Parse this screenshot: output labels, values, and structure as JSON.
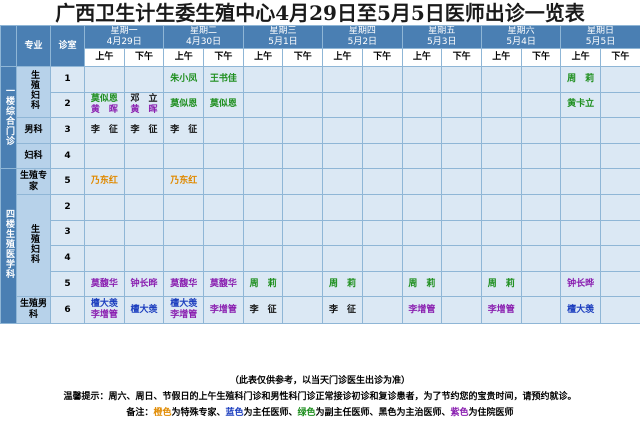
{
  "title": "广西卫生计生委生殖中心4月29日至5月5日医师出诊一览表",
  "header": {
    "specialty": "专业",
    "room": "诊室",
    "am": "上午",
    "pm": "下午",
    "days": [
      {
        "weekday": "星期一",
        "date": "4月29日"
      },
      {
        "weekday": "星期二",
        "date": "4月30日"
      },
      {
        "weekday": "星期三",
        "date": "5月1日"
      },
      {
        "weekday": "星期四",
        "date": "5月2日"
      },
      {
        "weekday": "星期五",
        "date": "5月3日"
      },
      {
        "weekday": "星期六",
        "date": "5月4日"
      },
      {
        "weekday": "星期日",
        "date": "5月5日"
      }
    ]
  },
  "sections": {
    "floor1": "一楼综合门诊",
    "floor4": "四楼生殖医学科"
  },
  "depts": {
    "repro_gyn": "生殖妇科",
    "male": "男科",
    "gyn": "妇科",
    "repro_expert": "生殖专家",
    "repro_gyn2": "生殖妇科",
    "repro_male": "生殖男科"
  },
  "rows": [
    {
      "room": "1",
      "cells": [
        {
          "lines": []
        },
        {
          "lines": []
        },
        {
          "lines": [
            {
              "t": "朱小凤",
              "c": "green"
            }
          ]
        },
        {
          "lines": [
            {
              "t": "王书佳",
              "c": "green"
            }
          ]
        },
        {
          "lines": []
        },
        {
          "lines": []
        },
        {
          "lines": []
        },
        {
          "lines": []
        },
        {
          "lines": []
        },
        {
          "lines": []
        },
        {
          "lines": []
        },
        {
          "lines": []
        },
        {
          "lines": [
            {
              "t": "周　莉",
              "c": "green"
            }
          ]
        },
        {
          "lines": []
        }
      ]
    },
    {
      "room": "2",
      "cells": [
        {
          "lines": [
            {
              "t": "莫似恩",
              "c": "green"
            },
            {
              "t": "黄　晖",
              "c": "purple"
            }
          ]
        },
        {
          "lines": [
            {
              "t": "邓　立",
              "c": "black"
            },
            {
              "t": "黄　晖",
              "c": "purple"
            }
          ]
        },
        {
          "lines": [
            {
              "t": "莫似恩",
              "c": "green"
            }
          ]
        },
        {
          "lines": [
            {
              "t": "莫似恩",
              "c": "green"
            }
          ]
        },
        {
          "lines": []
        },
        {
          "lines": []
        },
        {
          "lines": []
        },
        {
          "lines": []
        },
        {
          "lines": []
        },
        {
          "lines": []
        },
        {
          "lines": []
        },
        {
          "lines": []
        },
        {
          "lines": [
            {
              "t": "黄卡立",
              "c": "green"
            }
          ]
        },
        {
          "lines": []
        }
      ]
    },
    {
      "room": "3",
      "cells": [
        {
          "lines": [
            {
              "t": "李　征",
              "c": "black"
            }
          ]
        },
        {
          "lines": [
            {
              "t": "李　征",
              "c": "black"
            }
          ]
        },
        {
          "lines": [
            {
              "t": "李　征",
              "c": "black"
            }
          ]
        },
        {
          "lines": []
        },
        {
          "lines": []
        },
        {
          "lines": []
        },
        {
          "lines": []
        },
        {
          "lines": []
        },
        {
          "lines": []
        },
        {
          "lines": []
        },
        {
          "lines": []
        },
        {
          "lines": []
        },
        {
          "lines": []
        },
        {
          "lines": []
        }
      ]
    },
    {
      "room": "4",
      "cells": [
        {
          "lines": []
        },
        {
          "lines": []
        },
        {
          "lines": []
        },
        {
          "lines": []
        },
        {
          "lines": []
        },
        {
          "lines": []
        },
        {
          "lines": []
        },
        {
          "lines": []
        },
        {
          "lines": []
        },
        {
          "lines": []
        },
        {
          "lines": []
        },
        {
          "lines": []
        },
        {
          "lines": []
        },
        {
          "lines": []
        }
      ]
    },
    {
      "room": "5",
      "cells": [
        {
          "lines": [
            {
              "t": "乃东红",
              "c": "orange"
            }
          ]
        },
        {
          "lines": []
        },
        {
          "lines": [
            {
              "t": "乃东红",
              "c": "orange"
            }
          ]
        },
        {
          "lines": []
        },
        {
          "lines": []
        },
        {
          "lines": []
        },
        {
          "lines": []
        },
        {
          "lines": []
        },
        {
          "lines": []
        },
        {
          "lines": []
        },
        {
          "lines": []
        },
        {
          "lines": []
        },
        {
          "lines": []
        },
        {
          "lines": []
        }
      ]
    },
    {
      "room": "2",
      "cells": [
        {
          "lines": []
        },
        {
          "lines": []
        },
        {
          "lines": []
        },
        {
          "lines": []
        },
        {
          "lines": []
        },
        {
          "lines": []
        },
        {
          "lines": []
        },
        {
          "lines": []
        },
        {
          "lines": []
        },
        {
          "lines": []
        },
        {
          "lines": []
        },
        {
          "lines": []
        },
        {
          "lines": []
        },
        {
          "lines": []
        }
      ]
    },
    {
      "room": "3",
      "cells": [
        {
          "lines": []
        },
        {
          "lines": []
        },
        {
          "lines": []
        },
        {
          "lines": []
        },
        {
          "lines": []
        },
        {
          "lines": []
        },
        {
          "lines": []
        },
        {
          "lines": []
        },
        {
          "lines": []
        },
        {
          "lines": []
        },
        {
          "lines": []
        },
        {
          "lines": []
        },
        {
          "lines": []
        },
        {
          "lines": []
        }
      ]
    },
    {
      "room": "4",
      "cells": [
        {
          "lines": []
        },
        {
          "lines": []
        },
        {
          "lines": []
        },
        {
          "lines": []
        },
        {
          "lines": []
        },
        {
          "lines": []
        },
        {
          "lines": []
        },
        {
          "lines": []
        },
        {
          "lines": []
        },
        {
          "lines": []
        },
        {
          "lines": []
        },
        {
          "lines": []
        },
        {
          "lines": []
        },
        {
          "lines": []
        }
      ]
    },
    {
      "room": "5",
      "cells": [
        {
          "lines": [
            {
              "t": "莫馥华",
              "c": "purple"
            }
          ]
        },
        {
          "lines": [
            {
              "t": "钟长晔",
              "c": "purple"
            }
          ]
        },
        {
          "lines": [
            {
              "t": "莫馥华",
              "c": "purple"
            }
          ]
        },
        {
          "lines": [
            {
              "t": "莫馥华",
              "c": "purple"
            }
          ]
        },
        {
          "lines": [
            {
              "t": "周　莉",
              "c": "green"
            }
          ]
        },
        {
          "lines": []
        },
        {
          "lines": [
            {
              "t": "周　莉",
              "c": "green"
            }
          ]
        },
        {
          "lines": []
        },
        {
          "lines": [
            {
              "t": "周　莉",
              "c": "green"
            }
          ]
        },
        {
          "lines": []
        },
        {
          "lines": [
            {
              "t": "周　莉",
              "c": "green"
            }
          ]
        },
        {
          "lines": []
        },
        {
          "lines": [
            {
              "t": "钟长晔",
              "c": "purple"
            }
          ]
        },
        {
          "lines": []
        }
      ]
    },
    {
      "room": "6",
      "cells": [
        {
          "lines": [
            {
              "t": "檀大羡",
              "c": "blue"
            },
            {
              "t": "李增管",
              "c": "purple"
            }
          ]
        },
        {
          "lines": [
            {
              "t": "檀大羡",
              "c": "blue"
            }
          ]
        },
        {
          "lines": [
            {
              "t": "檀大羡",
              "c": "blue"
            },
            {
              "t": "李增管",
              "c": "purple"
            }
          ]
        },
        {
          "lines": [
            {
              "t": "李增管",
              "c": "purple"
            }
          ]
        },
        {
          "lines": [
            {
              "t": "李　征",
              "c": "black"
            }
          ]
        },
        {
          "lines": []
        },
        {
          "lines": [
            {
              "t": "李　征",
              "c": "black"
            }
          ]
        },
        {
          "lines": []
        },
        {
          "lines": [
            {
              "t": "李增管",
              "c": "purple"
            }
          ]
        },
        {
          "lines": []
        },
        {
          "lines": [
            {
              "t": "李增管",
              "c": "purple"
            }
          ]
        },
        {
          "lines": []
        },
        {
          "lines": [
            {
              "t": "檀大羡",
              "c": "blue"
            }
          ]
        },
        {
          "lines": []
        }
      ]
    }
  ],
  "footer": {
    "note": "（此表仅供参考，以当天门诊医生出诊为准）",
    "tip": "温馨提示：周六、周日、节假日的上午生殖科门诊和男性科门诊正常接诊初诊和复诊患者，为了节约您的宝贵时间，请预约就诊。",
    "legend": {
      "prefix": "备注：",
      "orange": "橙色",
      "orange_desc": "为特殊专家、",
      "blue": "蓝色",
      "blue_desc": "为主任医师、",
      "green": "绿色",
      "green_desc": "为副主任医师、黑色为主治医师、",
      "purple": "紫色",
      "purple_desc": "为住院医师"
    }
  }
}
